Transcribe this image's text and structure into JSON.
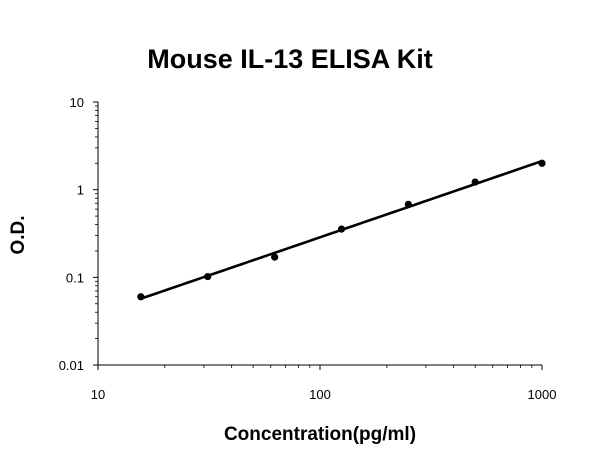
{
  "chart_data": {
    "type": "scatter",
    "title": "Mouse IL-13 ELISA Kit",
    "xlabel": "Concentration(pg/ml)",
    "ylabel": "O.D.",
    "xscale": "log",
    "yscale": "log",
    "xlim": [
      10,
      1000
    ],
    "ylim": [
      0.01,
      10
    ],
    "x_ticks": [
      "10",
      "100",
      "1000"
    ],
    "y_ticks": [
      "0.01",
      "0.1",
      "1",
      "10"
    ],
    "grid": false,
    "legend": "none",
    "series": [
      {
        "x": [
          15.6,
          31.2,
          62.5,
          125,
          250,
          500,
          1000
        ],
        "y": [
          0.06,
          0.102,
          0.17,
          0.355,
          0.68,
          1.22,
          2.0
        ],
        "markers": true,
        "fit_line": true,
        "color": "#000000"
      }
    ]
  }
}
